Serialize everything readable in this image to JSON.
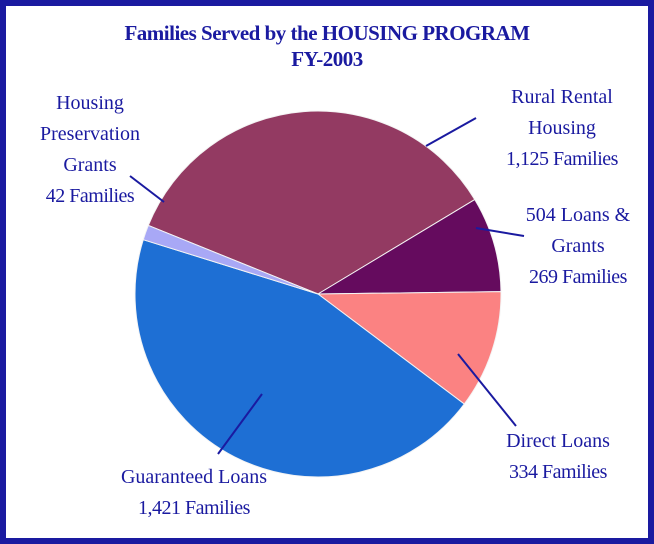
{
  "chart_data": {
    "type": "pie",
    "title": "Families Served by the HOUSING PROGRAM",
    "subtitle": "FY-2003",
    "categories": [
      "Rural Rental Housing",
      "504 Loans & Grants",
      "Direct Loans",
      "Guaranteed Loans",
      "Housing Preservation Grants"
    ],
    "values": [
      1125,
      269,
      334,
      1421,
      42
    ],
    "value_labels": [
      "1,125 Families",
      "269 Families",
      "334 Families",
      "1,421 Families",
      "42 Families"
    ],
    "colors": [
      "#933a62",
      "#650b5e",
      "#fb8282",
      "#1e6fd4",
      "#a8a8f6"
    ]
  }
}
